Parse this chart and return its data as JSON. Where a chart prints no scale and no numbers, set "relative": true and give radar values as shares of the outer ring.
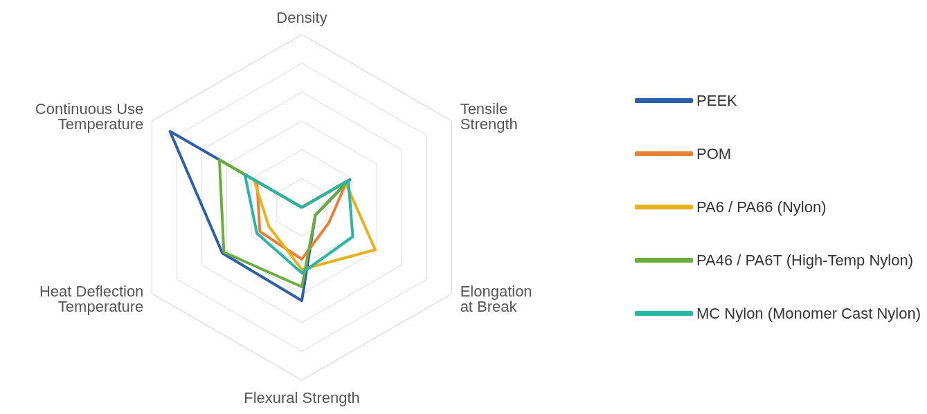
{
  "chart_data": {
    "type": "radar",
    "relative": true,
    "legend": "right",
    "marker": "none",
    "line_style": "solid",
    "categories": [
      "Density",
      "Tensile Strength",
      "Elongation at Break",
      "Flexural Strength",
      "Heat Deflection Temperature",
      "Continuous Use Temperature"
    ],
    "series": [
      {
        "name": "PEEK",
        "color": "#2f5fa7",
        "values": [
          0,
          0.32,
          0.09,
          0.54,
          0.53,
          0.88
        ]
      },
      {
        "name": "POM",
        "color": "#e8803a",
        "values": [
          0,
          0.3,
          0.18,
          0.3,
          0.28,
          0.3
        ]
      },
      {
        "name": "PA6 / PA66 (Nylon)",
        "color": "#e8b21c",
        "values": [
          0,
          0.29,
          0.49,
          0.36,
          0.22,
          0.32
        ]
      },
      {
        "name": "PA46 / PA6T (High-Temp Nylon)",
        "color": "#6aad3d",
        "values": [
          0,
          0.31,
          0.09,
          0.46,
          0.52,
          0.55
        ]
      },
      {
        "name": "MC Nylon (Monomer Cast Nylon)",
        "color": "#2bb5a8",
        "values": [
          0,
          0.31,
          0.34,
          0.38,
          0.3,
          0.38
        ]
      }
    ]
  }
}
